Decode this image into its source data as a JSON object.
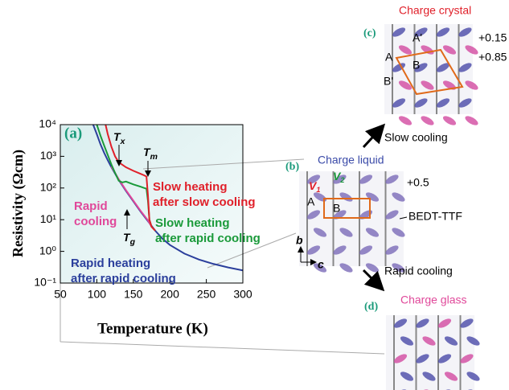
{
  "chart_data": {
    "type": "line",
    "panel_label": "(a)",
    "xlabel": "Temperature (K)",
    "ylabel": "Resistivity (Ωcm)",
    "xlim": [
      50,
      300
    ],
    "xticks": [
      50,
      100,
      150,
      200,
      250,
      300
    ],
    "ylim": [
      0.1,
      10000
    ],
    "yscale": "log",
    "yticks": [
      {
        "value": 0.1,
        "label": "10⁻¹"
      },
      {
        "value": 1,
        "label": "10⁰"
      },
      {
        "value": 10,
        "label": "10¹"
      },
      {
        "value": 100,
        "label": "10²"
      },
      {
        "value": 1000,
        "label": "10³"
      },
      {
        "value": 10000,
        "label": "10⁴"
      }
    ],
    "series": [
      {
        "name": "Rapid heating\nafter rapid cooling",
        "color": "#2b3f9c",
        "x": [
          95,
          100,
          105,
          110,
          115,
          120,
          130,
          140,
          150,
          160,
          170,
          180,
          190,
          200,
          220,
          240,
          260,
          280,
          300
        ],
        "values": [
          10000,
          5000,
          2400,
          1300,
          750,
          450,
          180,
          80,
          38,
          18,
          9,
          4.5,
          2.5,
          1.6,
          0.85,
          0.55,
          0.4,
          0.31,
          0.25
        ]
      },
      {
        "name": "Rapid\ncooling",
        "color": "#e0489a",
        "x": [
          120,
          130,
          140,
          150,
          160,
          170,
          175
        ],
        "values": [
          480,
          190,
          85,
          40,
          19,
          9.5,
          6
        ]
      },
      {
        "name": "Slow heating\nafter rapid cooling",
        "color": "#1a9a3a",
        "x": [
          100,
          105,
          110,
          115,
          120,
          125,
          130,
          135,
          140,
          150,
          160,
          165,
          168,
          170,
          172,
          175,
          180
        ],
        "values": [
          10000,
          4500,
          2200,
          1100,
          550,
          300,
          170,
          150,
          160,
          130,
          110,
          100,
          95,
          40,
          10,
          6,
          4.5
        ]
      },
      {
        "name": "Slow heating\nafter slow cooling",
        "color": "#e0202a",
        "x": [
          112,
          115,
          120,
          125,
          130,
          140,
          150,
          160,
          165,
          168,
          170,
          172,
          175,
          180
        ],
        "values": [
          10000,
          5000,
          2000,
          1000,
          650,
          450,
          350,
          280,
          250,
          230,
          60,
          10,
          6,
          4.5
        ]
      }
    ],
    "annotations": [
      {
        "text": "T",
        "sub": "x"
      },
      {
        "text": "T",
        "sub": "m"
      },
      {
        "text": "T",
        "sub": "g"
      }
    ]
  },
  "diagram": {
    "crystal": {
      "label": "(c)",
      "title": "Charge crystal",
      "sites": [
        "A'",
        "A",
        "B",
        "B'"
      ],
      "charges": [
        "+0.15",
        "+0.85"
      ]
    },
    "slow_arrow": "Slow cooling",
    "liquid": {
      "label": "(b)",
      "title": "Charge liquid",
      "v1": {
        "text": "V",
        "sub": "1"
      },
      "v2": {
        "text": "V",
        "sub": "2"
      },
      "charge": "+0.5",
      "sites": [
        "A",
        "B"
      ],
      "molecule": "BEDT-TTF",
      "axis_b": "b",
      "axis_c": "c"
    },
    "rapid_arrow": "Rapid cooling",
    "glass": {
      "label": "(d)",
      "title": "Charge glass"
    }
  }
}
